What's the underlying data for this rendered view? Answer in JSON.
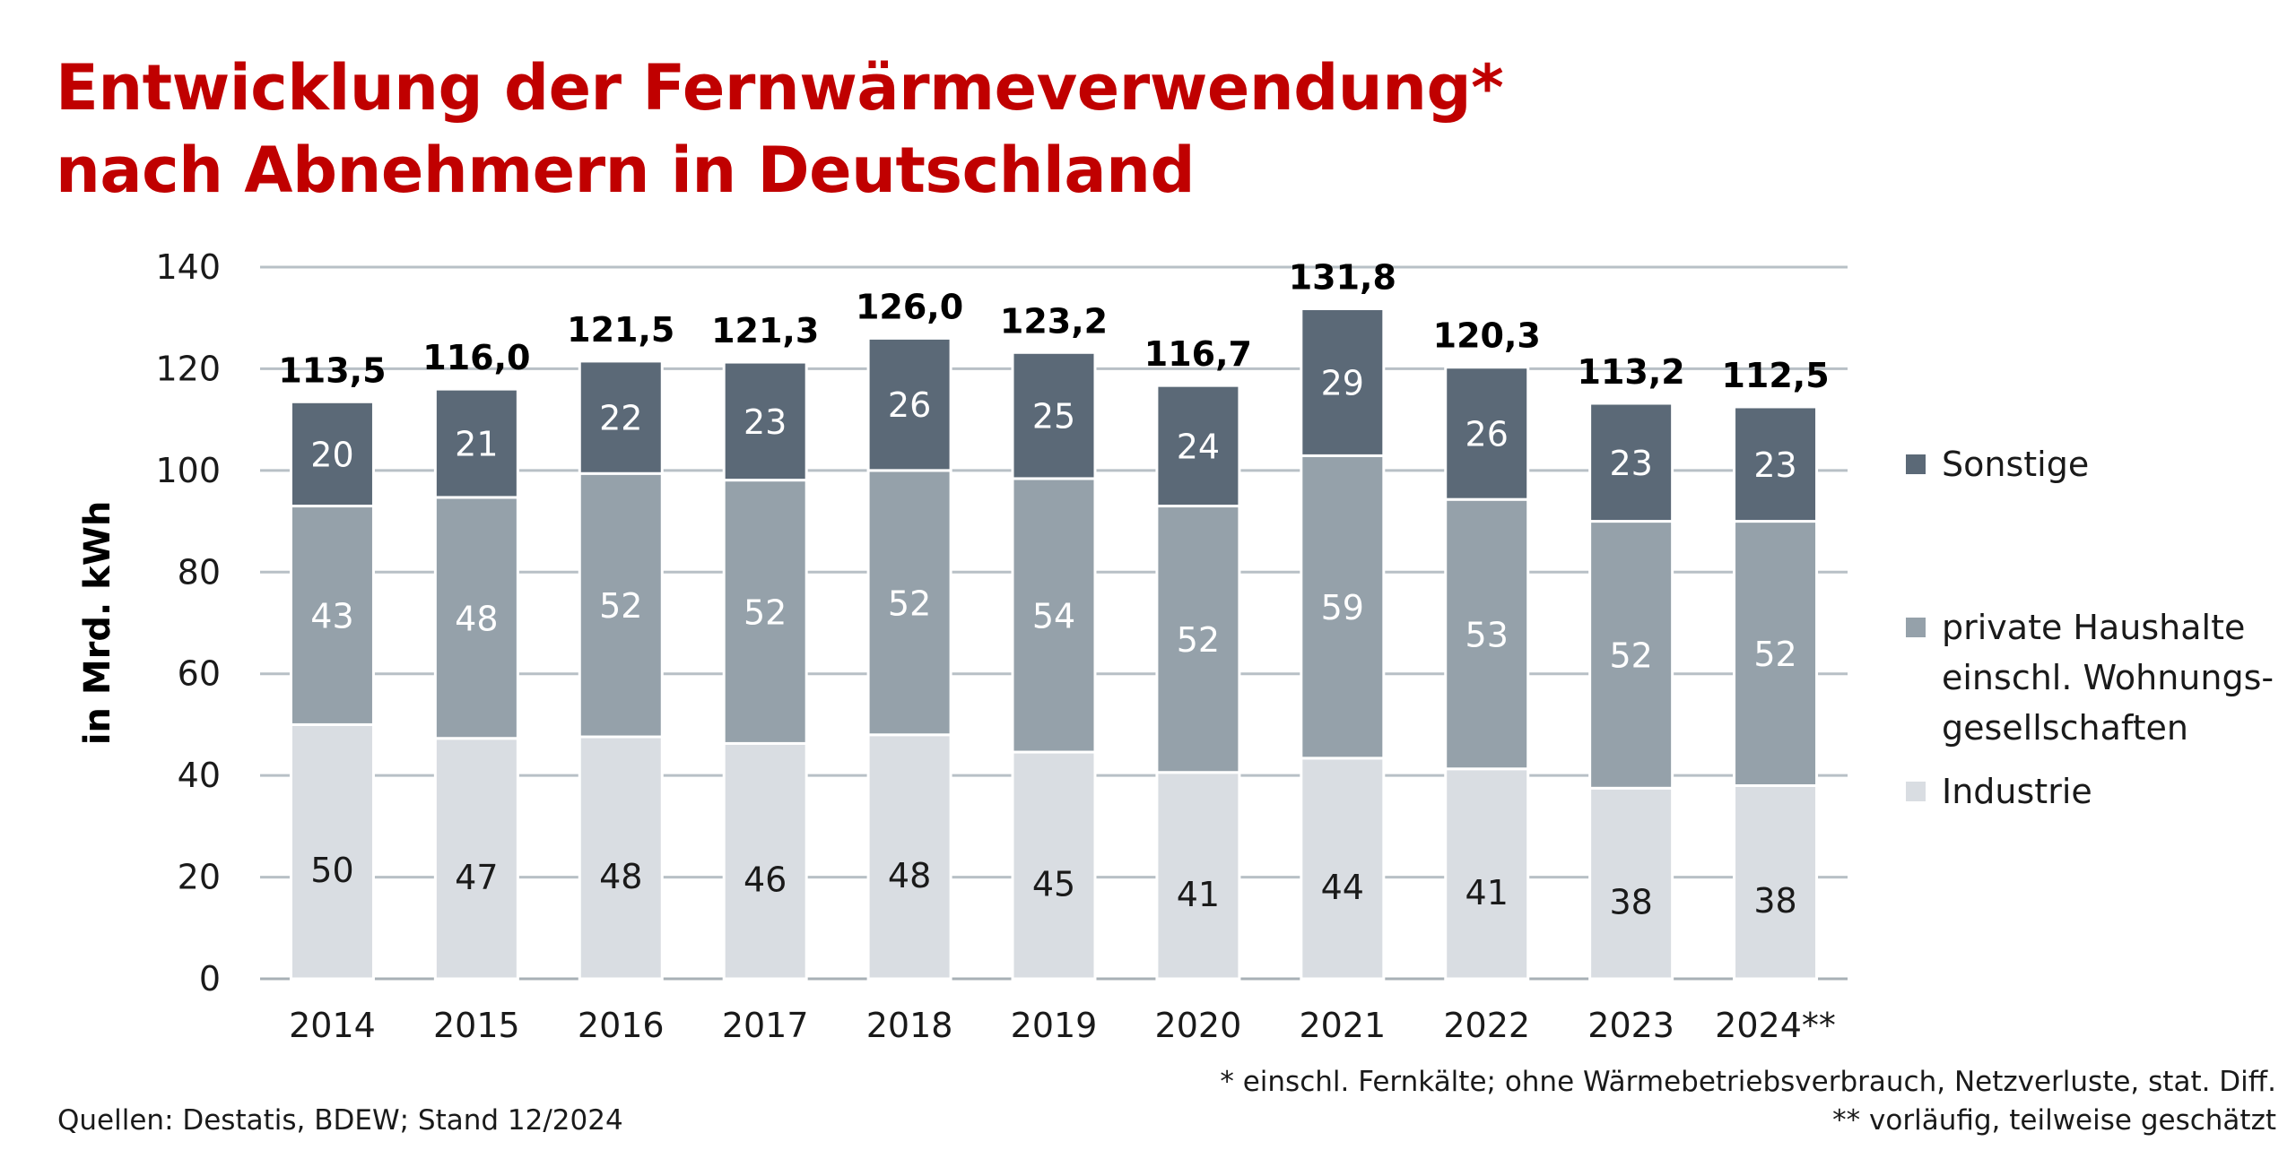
{
  "title": {
    "line1": "Entwicklung der Fernwärmeverwendung*",
    "line2": "nach Abnehmern in Deutschland"
  },
  "colors": {
    "title": "#c00000",
    "sonstige": "#5b6977",
    "haushalte": "#95a1aa",
    "industrie": "#d9dde2",
    "grid": "#b8c0c6"
  },
  "legend": [
    {
      "key": "sonstige",
      "label": "Sonstige"
    },
    {
      "key": "haushalte",
      "label": "private Haushalte\neinschl. Wohnungs-\ngesellschaften"
    },
    {
      "key": "industrie",
      "label": "Industrie"
    }
  ],
  "chart_data": {
    "type": "bar",
    "stacked": true,
    "ylabel": "in Mrd. kWh",
    "ylim": [
      0,
      140
    ],
    "yticks": [
      0,
      20,
      40,
      60,
      80,
      100,
      120,
      140
    ],
    "grid": true,
    "legend_position": "right",
    "categories": [
      "2014",
      "2015",
      "2016",
      "2017",
      "2018",
      "2019",
      "2020",
      "2021",
      "2022",
      "2023",
      "2024**"
    ],
    "series": [
      {
        "name": "Industrie",
        "key": "industrie",
        "values": [
          50,
          47,
          48,
          46,
          48,
          45,
          41,
          44,
          41,
          38,
          38
        ]
      },
      {
        "name": "private Haushalte einschl. Wohnungsgesellschaften",
        "key": "haushalte",
        "values": [
          43,
          48,
          52,
          52,
          52,
          54,
          52,
          59,
          53,
          52,
          52
        ]
      },
      {
        "name": "Sonstige",
        "key": "sonstige",
        "values": [
          20,
          21,
          22,
          23,
          26,
          25,
          24,
          29,
          26,
          23,
          23
        ]
      }
    ],
    "segment_tops": {
      "industrie": [
        50.0,
        47.3,
        47.6,
        46.3,
        48.0,
        44.6,
        40.6,
        43.4,
        41.3,
        37.5,
        38.0
      ],
      "haushalte": [
        93.0,
        94.7,
        99.4,
        98.1,
        100.0,
        98.4,
        93.0,
        102.9,
        94.3,
        90.0,
        90.0
      ]
    },
    "totals": [
      "113,5",
      "116,0",
      "121,5",
      "121,3",
      "126,0",
      "123,2",
      "116,7",
      "131,8",
      "120,3",
      "113,2",
      "112,5"
    ],
    "total_values": [
      113.5,
      116.0,
      121.5,
      121.3,
      126.0,
      123.2,
      116.7,
      131.8,
      120.3,
      113.2,
      112.5
    ]
  },
  "footnotes": {
    "source": "Quellen: Destatis, BDEW; Stand 12/2024",
    "note1": "* einschl. Fernkälte; ohne Wärmebetriebsverbrauch, Netzverluste, stat. Diff.",
    "note2": "** vorläufig, teilweise geschätzt"
  }
}
